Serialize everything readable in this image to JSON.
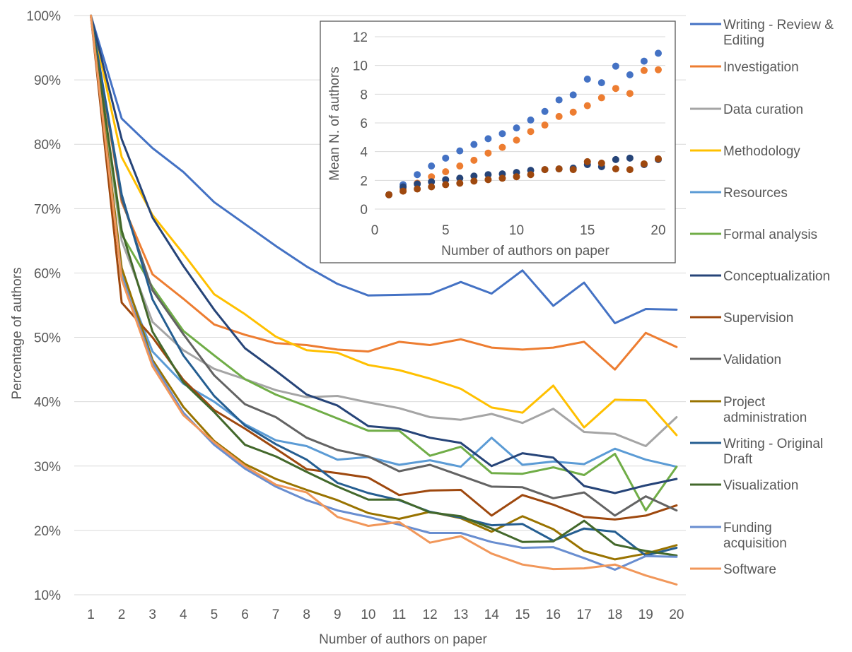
{
  "chart_data": [
    {
      "type": "line",
      "xlabel": "Number of authors on paper",
      "ylabel": "Percentage of authors",
      "ylim": [
        10,
        100
      ],
      "ytick_labels": [
        "10%",
        "20%",
        "30%",
        "40%",
        "50%",
        "60%",
        "70%",
        "80%",
        "90%",
        "100%"
      ],
      "x": [
        1,
        2,
        3,
        4,
        5,
        6,
        7,
        8,
        9,
        10,
        11,
        12,
        13,
        14,
        15,
        16,
        17,
        18,
        19,
        20
      ],
      "grid": true,
      "legend": "right",
      "series": [
        {
          "name": "Writing - Review & Editing",
          "color": "#4472C4",
          "values": [
            100,
            84,
            79.4,
            75.7,
            71,
            67.6,
            64.2,
            61,
            58.3,
            56.5,
            56.6,
            56.7,
            58.6,
            56.8,
            60.4,
            54.9,
            58.5,
            52.2,
            54.4,
            54.3
          ]
        },
        {
          "name": "Investigation",
          "color": "#ED7D31",
          "values": [
            100,
            71,
            59.8,
            56,
            52,
            50.4,
            49.1,
            48.8,
            48.1,
            47.8,
            49.3,
            48.8,
            49.7,
            48.4,
            48.1,
            48.4,
            49.3,
            45,
            50.7,
            48.5
          ]
        },
        {
          "name": "Data curation",
          "color": "#A5A5A5",
          "values": [
            100,
            65,
            52.4,
            48,
            45.1,
            43.5,
            41.8,
            40.7,
            40.9,
            39.9,
            39,
            37.6,
            37.2,
            38.1,
            36.7,
            38.9,
            35.3,
            35,
            33.1,
            37.6
          ]
        },
        {
          "name": "Methodology",
          "color": "#FFC000",
          "values": [
            100,
            78,
            69,
            63,
            56.7,
            53.6,
            50.1,
            48,
            47.6,
            45.7,
            44.9,
            43.6,
            42,
            39.1,
            38.3,
            42.5,
            36,
            40.3,
            40.2,
            34.8
          ]
        },
        {
          "name": "Resources",
          "color": "#5B9BD5",
          "values": [
            100,
            60,
            47.8,
            42.8,
            40,
            36.5,
            34,
            33.1,
            31,
            31.4,
            30.2,
            30.9,
            29.9,
            34.4,
            30.2,
            30.7,
            30.3,
            32.7,
            31,
            29.9
          ]
        },
        {
          "name": "Formal analysis",
          "color": "#70AD47",
          "values": [
            100,
            66,
            57.8,
            51,
            47.2,
            43.5,
            41.1,
            39.3,
            37.4,
            35.5,
            35.5,
            31.6,
            33,
            28.9,
            28.8,
            29.8,
            28.6,
            31.9,
            23.1,
            29.9
          ]
        },
        {
          "name": "Conceptualization",
          "color": "#264478",
          "values": [
            100,
            80.8,
            68.6,
            61.1,
            54.3,
            48.3,
            44.8,
            41.1,
            39.4,
            36.2,
            35.8,
            34.4,
            33.6,
            30,
            32,
            31.3,
            26.9,
            25.8,
            27,
            28
          ]
        },
        {
          "name": "Supervision",
          "color": "#9E480E",
          "values": [
            100,
            55.4,
            50,
            43.4,
            38.7,
            35.8,
            32.7,
            29.5,
            28.9,
            28.2,
            25.5,
            26.2,
            26.3,
            22.3,
            25.5,
            24,
            22.1,
            21.7,
            22.3,
            23.9
          ]
        },
        {
          "name": "Validation",
          "color": "#636363",
          "values": [
            100,
            71.5,
            57.3,
            50.5,
            44.1,
            39.6,
            37.6,
            34.4,
            32.5,
            31.5,
            29.2,
            30.2,
            28.5,
            26.8,
            26.7,
            25,
            25.9,
            22.3,
            25.3,
            23.1
          ]
        },
        {
          "name": "Project administration",
          "color": "#997300",
          "values": [
            100,
            60.8,
            46.5,
            39.2,
            33.9,
            30.3,
            28,
            26.3,
            24.7,
            22.7,
            21.8,
            22.9,
            21.9,
            19.8,
            22.2,
            20.2,
            16.8,
            15.5,
            16.4,
            17.7
          ]
        },
        {
          "name": "Writing - Original Draft",
          "color": "#255E91",
          "values": [
            100,
            72.2,
            55.9,
            47.2,
            40.9,
            36.3,
            33.4,
            31,
            27.4,
            25.8,
            24.7,
            22.9,
            22,
            20.8,
            21,
            18.4,
            20.3,
            19.8,
            16.1,
            17.3
          ]
        },
        {
          "name": "Visualization",
          "color": "#43682B",
          "values": [
            100,
            66.6,
            50.9,
            43,
            38.4,
            33.3,
            31.5,
            29.1,
            26.8,
            24.8,
            24.8,
            22.8,
            22.2,
            20.3,
            18.2,
            18.3,
            21.5,
            17.8,
            16.8,
            16.1
          ]
        },
        {
          "name": "Funding acquisition",
          "color": "#698ED0",
          "values": [
            100,
            59.3,
            46.1,
            38.3,
            33.3,
            29.6,
            26.8,
            24.7,
            23.1,
            22.1,
            20.9,
            19.6,
            19.6,
            18.2,
            17.3,
            17.4,
            15.7,
            13.9,
            16,
            15.9
          ]
        },
        {
          "name": "Software",
          "color": "#F1975A",
          "values": [
            100,
            59,
            45.5,
            37.9,
            33.7,
            30,
            27.1,
            25.9,
            22.1,
            20.7,
            21.3,
            18.1,
            19.1,
            16.4,
            14.7,
            14,
            14.1,
            14.7,
            13,
            11.6
          ]
        }
      ]
    },
    {
      "type": "scatter",
      "xlabel": "Number of authors on paper",
      "ylabel": "Mean N. of authors",
      "xlim": [
        0,
        20
      ],
      "ylim": [
        0,
        12
      ],
      "xticks": [
        0,
        5,
        10,
        15,
        20
      ],
      "yticks": [
        0,
        2,
        4,
        6,
        8,
        10,
        12
      ],
      "grid": true,
      "series": [
        {
          "color": "#4472C4",
          "x": [
            1,
            2,
            3,
            4,
            5,
            6,
            7,
            8,
            9,
            10,
            11,
            12,
            13,
            14,
            15,
            16,
            17,
            18,
            19,
            20
          ],
          "y": [
            1,
            1.7,
            2.4,
            3,
            3.55,
            4.05,
            4.5,
            4.9,
            5.25,
            5.65,
            6.2,
            6.8,
            7.6,
            7.95,
            9.05,
            8.8,
            9.95,
            9.35,
            10.3,
            10.85
          ]
        },
        {
          "color": "#ED7D31",
          "x": [
            1,
            2,
            3,
            4,
            5,
            6,
            7,
            8,
            9,
            10,
            11,
            12,
            13,
            14,
            15,
            16,
            17,
            18,
            19,
            20
          ],
          "y": [
            1,
            1.4,
            1.8,
            2.25,
            2.6,
            3,
            3.4,
            3.9,
            4.3,
            4.8,
            5.4,
            5.85,
            6.45,
            6.75,
            7.2,
            7.75,
            8.4,
            8.05,
            9.65,
            9.7
          ]
        },
        {
          "color": "#264478",
          "x": [
            1,
            2,
            3,
            4,
            5,
            6,
            7,
            8,
            9,
            10,
            11,
            12,
            13,
            14,
            15,
            16,
            17,
            18,
            19,
            20
          ],
          "y": [
            1,
            1.55,
            1.75,
            1.9,
            2.05,
            2.15,
            2.3,
            2.4,
            2.45,
            2.55,
            2.7,
            2.75,
            2.8,
            2.85,
            3.1,
            2.95,
            3.45,
            3.55,
            3.1,
            3.45
          ]
        },
        {
          "color": "#9E480E",
          "x": [
            1,
            2,
            3,
            4,
            5,
            6,
            7,
            8,
            9,
            10,
            11,
            12,
            13,
            14,
            15,
            16,
            17,
            18,
            19,
            20
          ],
          "y": [
            1,
            1.25,
            1.4,
            1.55,
            1.7,
            1.8,
            1.95,
            2.05,
            2.15,
            2.25,
            2.4,
            2.75,
            2.8,
            2.75,
            3.3,
            3.2,
            2.8,
            2.75,
            3.15,
            3.5
          ]
        }
      ]
    }
  ]
}
